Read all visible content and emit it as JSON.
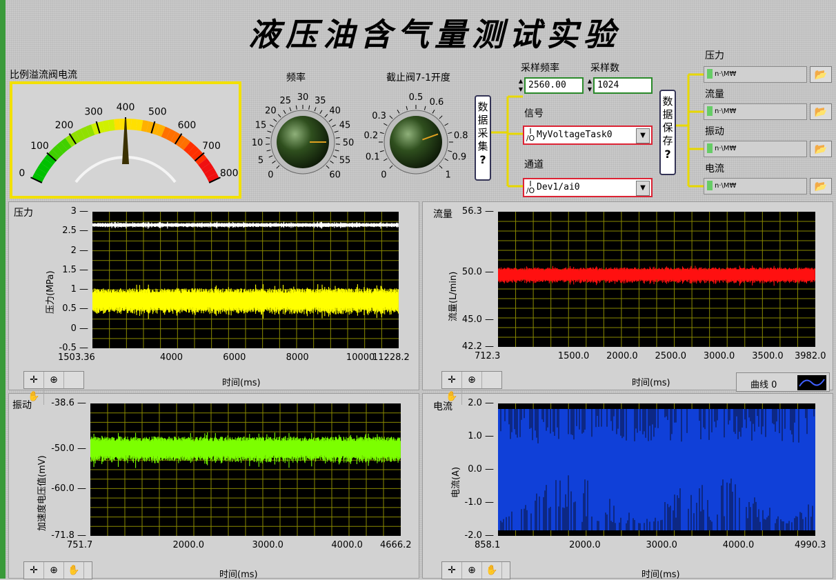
{
  "title": "液压油含气量测试实验",
  "gauge": {
    "label": "比例溢流阀电流",
    "ticks": [
      "0",
      "100",
      "200",
      "300",
      "400",
      "500",
      "600",
      "700",
      "800"
    ],
    "value": 400
  },
  "freq_knob": {
    "label": "频率",
    "ticks": [
      "0",
      "5",
      "10",
      "15",
      "20",
      "25",
      "30",
      "35",
      "40",
      "45",
      "50",
      "55",
      "60"
    ],
    "value": 50
  },
  "valve_knob": {
    "label": "截止阀7-1开度",
    "ticks": [
      "0",
      "0.1",
      "0.2",
      "0.3",
      "0.5",
      "0.6",
      "0.8",
      "0.9",
      "1"
    ],
    "value": 0.76
  },
  "sampling": {
    "rate_label": "采样频率",
    "rate_value": "2560.00",
    "count_label": "采样数",
    "count_value": "1024",
    "signal_label": "信号",
    "signal_value": "MyVoltageTask0",
    "channel_label": "通道",
    "channel_value": "Dev1/ai0",
    "io_glyph": "I/O"
  },
  "acquire_button": {
    "chars": [
      "数",
      "据",
      "采",
      "集"
    ],
    "q": "?"
  },
  "save_button": {
    "chars": [
      "数",
      "据",
      "保",
      "存"
    ],
    "q": "?"
  },
  "save_paths": [
    {
      "label": "压力",
      "path": "n·\\M₩"
    },
    {
      "label": "流量",
      "path": "n·\\M₩"
    },
    {
      "label": "振动",
      "path": "n·\\M₩"
    },
    {
      "label": "电流",
      "path": "n·\\M₩"
    }
  ],
  "graphs": {
    "pressure": {
      "label": "压力",
      "ylabel": "压力(MPa)",
      "xlabel": "时间(ms)",
      "yticks": [
        "3",
        "2.5",
        "2",
        "1.5",
        "1",
        "0.5",
        "0",
        "-0.5"
      ],
      "xticks": [
        "1503.36",
        "4000",
        "6000",
        "8000",
        "10000",
        "11228.2"
      ]
    },
    "flow": {
      "label": "流量",
      "ylabel": "流量(L/min)",
      "xlabel": "时间(ms)",
      "yticks": [
        "56.3",
        "50.0",
        "45.0",
        "42.2"
      ],
      "xticks": [
        "712.3",
        "1500.0",
        "2000.0",
        "2500.0",
        "3000.0",
        "3500.0",
        "3982.0"
      ],
      "legend": "曲线 0"
    },
    "vibration": {
      "label": "振动",
      "ylabel": "加速度电压值(mV)",
      "xlabel": "时间(ms)",
      "yticks": [
        "-38.6",
        "-50.0",
        "-60.0",
        "-71.8"
      ],
      "xticks": [
        "751.7",
        "2000.0",
        "3000.0",
        "4000.0",
        "4666.2"
      ]
    },
    "current": {
      "label": "电流",
      "ylabel": "电流(A)",
      "xlabel": "时间(ms)",
      "yticks": [
        "2.0",
        "1.0",
        "0.0",
        "-1.0",
        "-2.0"
      ],
      "xticks": [
        "858.1",
        "2000.0",
        "3000.0",
        "4000.0",
        "4990.3"
      ]
    }
  },
  "tools": {
    "cursor": "✛",
    "zoom": "⊕",
    "pan": "✋"
  },
  "colors": {
    "pressure_main": "#ffff00",
    "pressure_ref": "#ffffff",
    "flow": "#ff1010",
    "vibration": "#7cff00",
    "current": "#1040d8",
    "grid": "#8a8a00"
  }
}
